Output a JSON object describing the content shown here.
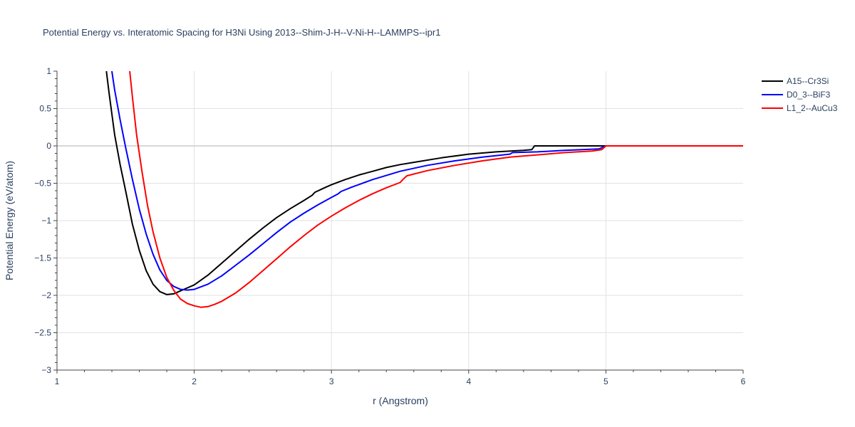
{
  "chart_data": {
    "type": "line",
    "title": "Potential Energy vs. Interatomic Spacing for H3Ni Using 2013--Shim-J-H--V-Ni-H--LAMMPS--ipr1",
    "xlabel": "r (Angstrom)",
    "ylabel": "Potential Energy (eV/atom)",
    "xlim": [
      1,
      6
    ],
    "ylim": [
      -3,
      1
    ],
    "xticks": [
      1,
      2,
      3,
      4,
      5,
      6
    ],
    "xtick_labels": [
      "1",
      "2",
      "3",
      "4",
      "5",
      "6"
    ],
    "yticks": [
      1,
      0.5,
      0,
      -0.5,
      -1,
      -1.5,
      -2,
      -2.5,
      -3
    ],
    "ytick_labels": [
      "1",
      "0.5",
      "0",
      "−0.5",
      "−1",
      "−1.5",
      "−2",
      "−2.5",
      "−3"
    ],
    "grid": true,
    "legend_position": "top-right",
    "series": [
      {
        "name": "A15--Cr3Si",
        "color": "#000000",
        "x": [
          1.36,
          1.38,
          1.42,
          1.46,
          1.5,
          1.55,
          1.6,
          1.65,
          1.7,
          1.75,
          1.8,
          1.85,
          1.9,
          1.95,
          2.0,
          2.1,
          2.2,
          2.3,
          2.4,
          2.5,
          2.6,
          2.7,
          2.8,
          2.86,
          2.88,
          2.95,
          3.0,
          3.1,
          3.2,
          3.3,
          3.4,
          3.5,
          3.6,
          3.8,
          4.0,
          4.2,
          4.4,
          4.46,
          4.48,
          4.6,
          4.8,
          5.0,
          5.5,
          6.0
        ],
        "values": [
          1.0,
          0.7,
          0.15,
          -0.25,
          -0.6,
          -1.05,
          -1.4,
          -1.67,
          -1.85,
          -1.95,
          -1.99,
          -1.98,
          -1.94,
          -1.9,
          -1.86,
          -1.73,
          -1.57,
          -1.41,
          -1.25,
          -1.1,
          -0.96,
          -0.84,
          -0.73,
          -0.66,
          -0.62,
          -0.56,
          -0.52,
          -0.45,
          -0.39,
          -0.34,
          -0.29,
          -0.25,
          -0.22,
          -0.16,
          -0.11,
          -0.08,
          -0.06,
          -0.05,
          0.0,
          0.0,
          0.0,
          0.0,
          0.0,
          0.0
        ]
      },
      {
        "name": "D0_3--BiF3",
        "color": "#0000ff",
        "x": [
          1.4,
          1.42,
          1.46,
          1.5,
          1.55,
          1.6,
          1.65,
          1.7,
          1.75,
          1.8,
          1.85,
          1.9,
          1.95,
          2.0,
          2.1,
          2.2,
          2.3,
          2.4,
          2.5,
          2.6,
          2.7,
          2.8,
          2.9,
          3.0,
          3.05,
          3.07,
          3.15,
          3.3,
          3.5,
          3.7,
          3.9,
          4.1,
          4.3,
          4.32,
          4.5,
          4.7,
          4.95,
          5.0,
          5.5,
          6.0
        ],
        "values": [
          1.0,
          0.75,
          0.35,
          -0.02,
          -0.45,
          -0.85,
          -1.18,
          -1.45,
          -1.66,
          -1.8,
          -1.88,
          -1.92,
          -1.93,
          -1.92,
          -1.85,
          -1.74,
          -1.6,
          -1.46,
          -1.31,
          -1.16,
          -1.02,
          -0.9,
          -0.79,
          -0.69,
          -0.64,
          -0.61,
          -0.55,
          -0.45,
          -0.34,
          -0.26,
          -0.2,
          -0.15,
          -0.11,
          -0.09,
          -0.08,
          -0.06,
          -0.04,
          0.0,
          0.0,
          0.0
        ]
      },
      {
        "name": "L1_2--AuCu3",
        "color": "#ff0000",
        "x": [
          1.53,
          1.55,
          1.58,
          1.62,
          1.66,
          1.7,
          1.75,
          1.8,
          1.85,
          1.9,
          1.95,
          2.0,
          2.05,
          2.1,
          2.15,
          2.2,
          2.3,
          2.4,
          2.5,
          2.6,
          2.7,
          2.8,
          2.9,
          3.0,
          3.1,
          3.2,
          3.3,
          3.4,
          3.5,
          3.52,
          3.55,
          3.7,
          3.9,
          4.1,
          4.3,
          4.5,
          4.7,
          4.9,
          4.97,
          5.0,
          5.5,
          6.0
        ],
        "values": [
          1.0,
          0.65,
          0.15,
          -0.35,
          -0.8,
          -1.15,
          -1.5,
          -1.76,
          -1.93,
          -2.05,
          -2.11,
          -2.14,
          -2.16,
          -2.15,
          -2.12,
          -2.08,
          -1.97,
          -1.83,
          -1.67,
          -1.51,
          -1.35,
          -1.2,
          -1.06,
          -0.94,
          -0.83,
          -0.73,
          -0.64,
          -0.56,
          -0.49,
          -0.45,
          -0.4,
          -0.33,
          -0.26,
          -0.2,
          -0.15,
          -0.12,
          -0.09,
          -0.07,
          -0.05,
          0.0,
          0.0,
          0.0
        ]
      }
    ]
  }
}
